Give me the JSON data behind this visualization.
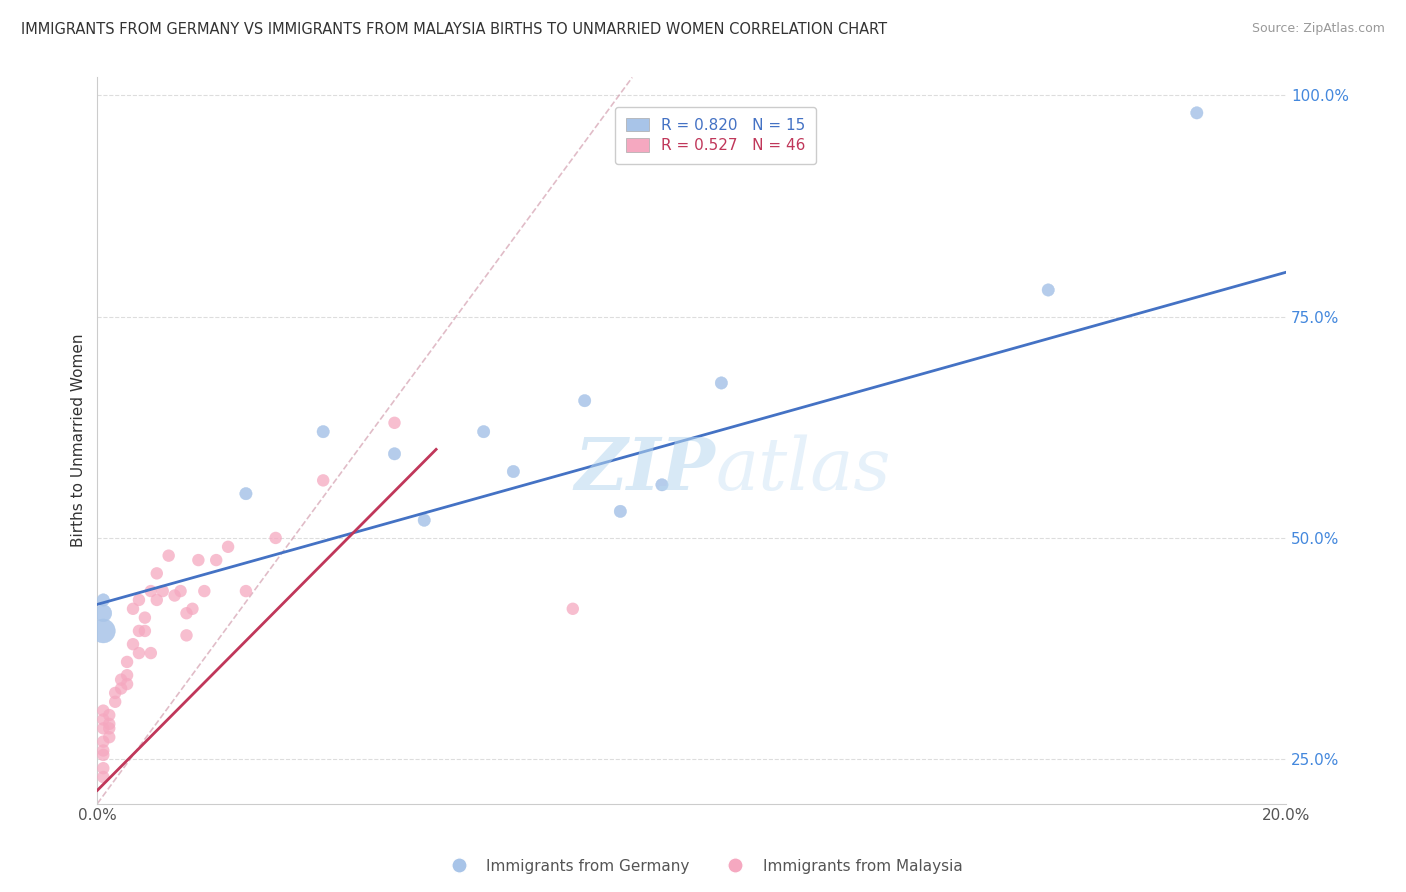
{
  "title": "IMMIGRANTS FROM GERMANY VS IMMIGRANTS FROM MALAYSIA BIRTHS TO UNMARRIED WOMEN CORRELATION CHART",
  "source": "Source: ZipAtlas.com",
  "ylabel": "Births to Unmarried Women",
  "legend_germany": "Immigrants from Germany",
  "legend_malaysia": "Immigrants from Malaysia",
  "r_germany": 0.82,
  "n_germany": 15,
  "r_malaysia": 0.527,
  "n_malaysia": 46,
  "color_germany": "#a8c4e8",
  "color_malaysia": "#f5a8c0",
  "color_line_germany": "#4472c4",
  "color_line_malaysia": "#c0375a",
  "color_ref_line": "#d8a8b8",
  "background": "#ffffff",
  "xlim": [
    0.0,
    0.2
  ],
  "ylim": [
    0.2,
    1.02
  ],
  "xtick_positions": [
    0.0,
    0.05,
    0.1,
    0.15,
    0.2
  ],
  "xticklabels": [
    "0.0%",
    "",
    "",
    "",
    "20.0%"
  ],
  "ytick_right_positions": [
    0.25,
    0.5,
    0.75,
    1.0
  ],
  "ytick_right_labels": [
    "25.0%",
    "50.0%",
    "75.0%",
    "100.0%"
  ],
  "watermark_zip": "ZIP",
  "watermark_atlas": "atlas",
  "germany_x": [
    0.001,
    0.001,
    0.001,
    0.025,
    0.038,
    0.05,
    0.055,
    0.065,
    0.07,
    0.082,
    0.088,
    0.095,
    0.105,
    0.16,
    0.185
  ],
  "germany_y": [
    0.395,
    0.415,
    0.43,
    0.55,
    0.62,
    0.595,
    0.52,
    0.62,
    0.575,
    0.655,
    0.53,
    0.56,
    0.675,
    0.78,
    0.98
  ],
  "germany_size": [
    300,
    150,
    80,
    80,
    80,
    80,
    80,
    80,
    80,
    80,
    80,
    80,
    80,
    80,
    80
  ],
  "malaysia_x": [
    0.001,
    0.001,
    0.001,
    0.001,
    0.001,
    0.001,
    0.001,
    0.001,
    0.002,
    0.002,
    0.002,
    0.002,
    0.003,
    0.003,
    0.004,
    0.004,
    0.005,
    0.005,
    0.005,
    0.006,
    0.006,
    0.007,
    0.007,
    0.007,
    0.008,
    0.008,
    0.009,
    0.009,
    0.01,
    0.01,
    0.011,
    0.012,
    0.013,
    0.014,
    0.015,
    0.015,
    0.016,
    0.017,
    0.018,
    0.02,
    0.022,
    0.025,
    0.03,
    0.038,
    0.05,
    0.08
  ],
  "malaysia_y": [
    0.285,
    0.295,
    0.305,
    0.27,
    0.26,
    0.255,
    0.24,
    0.23,
    0.3,
    0.29,
    0.285,
    0.275,
    0.315,
    0.325,
    0.33,
    0.34,
    0.335,
    0.345,
    0.36,
    0.38,
    0.42,
    0.37,
    0.395,
    0.43,
    0.395,
    0.41,
    0.44,
    0.37,
    0.43,
    0.46,
    0.44,
    0.48,
    0.435,
    0.44,
    0.415,
    0.39,
    0.42,
    0.475,
    0.44,
    0.475,
    0.49,
    0.44,
    0.5,
    0.565,
    0.63,
    0.42
  ],
  "malaysia_size": [
    80,
    80,
    80,
    80,
    80,
    80,
    80,
    80,
    80,
    80,
    80,
    80,
    80,
    80,
    80,
    80,
    80,
    80,
    80,
    80,
    80,
    80,
    80,
    80,
    80,
    80,
    80,
    80,
    80,
    80,
    80,
    80,
    80,
    80,
    80,
    80,
    80,
    80,
    80,
    80,
    80,
    80,
    80,
    80,
    80,
    80
  ],
  "blue_line_x0": 0.0,
  "blue_line_y0": 0.425,
  "blue_line_x1": 0.2,
  "blue_line_y1": 0.8,
  "pink_line_x0": 0.0,
  "pink_line_y0": 0.215,
  "pink_line_x1": 0.057,
  "pink_line_y1": 0.6,
  "ref_line_x0": 0.0,
  "ref_line_y0": 0.2,
  "ref_line_x1": 0.09,
  "ref_line_y1": 1.02
}
